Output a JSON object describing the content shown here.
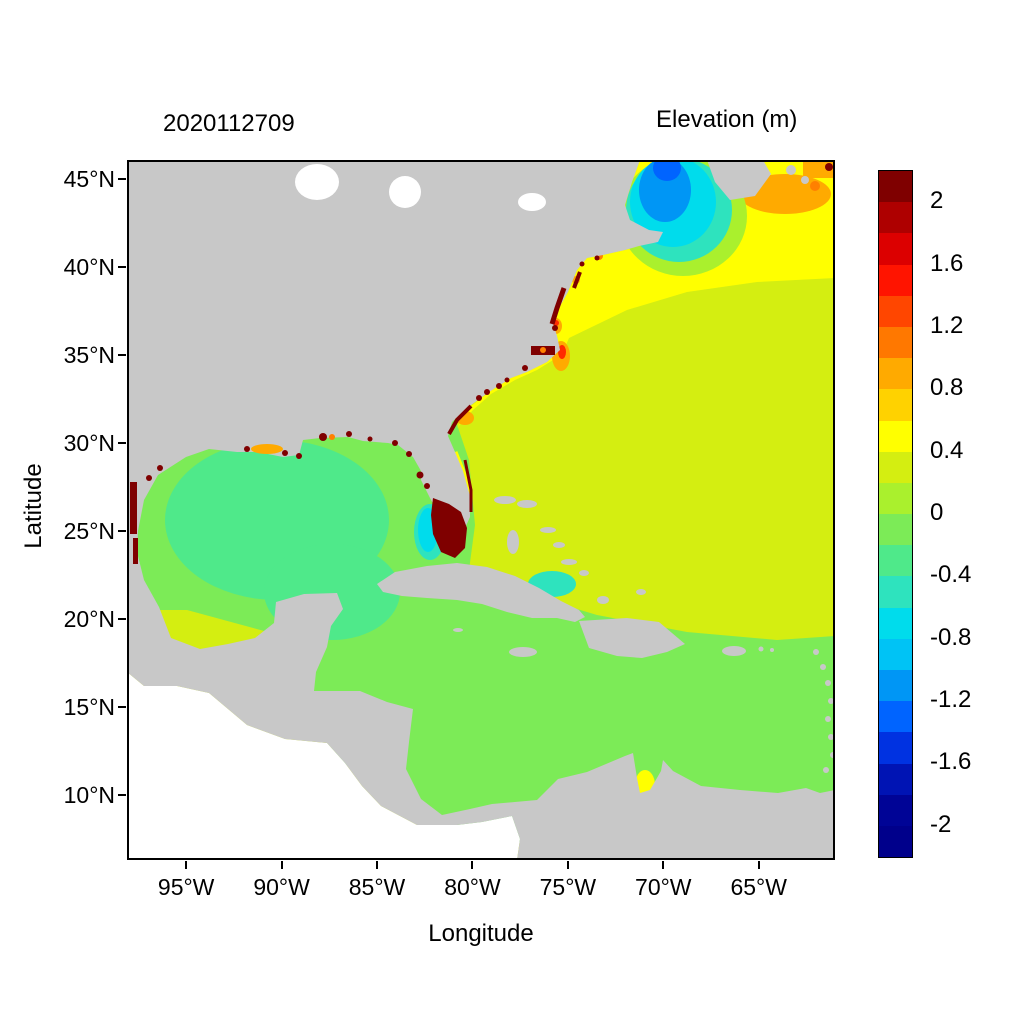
{
  "figure": {
    "timestamp_title": "2020112709",
    "colorbar_title": "Elevation (m)",
    "x_axis": {
      "label": "Longitude",
      "ticks": [
        {
          "label": "95°W",
          "lon": -95
        },
        {
          "label": "90°W",
          "lon": -90
        },
        {
          "label": "85°W",
          "lon": -85
        },
        {
          "label": "80°W",
          "lon": -80
        },
        {
          "label": "75°W",
          "lon": -75
        },
        {
          "label": "70°W",
          "lon": -70
        },
        {
          "label": "65°W",
          "lon": -65
        }
      ]
    },
    "y_axis": {
      "label": "Latitude",
      "ticks": [
        {
          "label": "45°N",
          "lat": 45
        },
        {
          "label": "40°N",
          "lat": 40
        },
        {
          "label": "35°N",
          "lat": 35
        },
        {
          "label": "30°N",
          "lat": 30
        },
        {
          "label": "25°N",
          "lat": 25
        },
        {
          "label": "20°N",
          "lat": 20
        },
        {
          "label": "15°N",
          "lat": 15
        },
        {
          "label": "10°N",
          "lat": 10
        }
      ]
    },
    "colorbar": {
      "tick_labels": [
        "2",
        "1.6",
        "1.2",
        "0.8",
        "0.4",
        "0",
        "-0.4",
        "-0.8",
        "-1.2",
        "-1.6",
        "-2"
      ],
      "band_colors": [
        "#7F0000",
        "#AE0000",
        "#DC0000",
        "#FF1400",
        "#FF4600",
        "#FF7800",
        "#FFAA00",
        "#FFD200",
        "#FFFF00",
        "#D4EE11",
        "#AAF02D",
        "#7CEB57",
        "#4FE98A",
        "#2EE3BE",
        "#00DCEC",
        "#00C3F5",
        "#0096F5",
        "#0064FF",
        "#0032E1",
        "#0014B4",
        "#000496",
        "#00008B"
      ],
      "value_min": -2.2,
      "value_max": 2.2
    }
  },
  "colors": {
    "background": "#FFFFFF",
    "outside_domain": "#FFFFFF",
    "land": "#C8C8C8",
    "lake": "#FFFFFF",
    "frame": "#000000",
    "atlantic": "#D4EE11",
    "coastal_yellow": "#FFFF00",
    "green": "#7CEB57",
    "spring_green": "#4FE98A",
    "turquoise": "#2EE3BE",
    "cyan": "#00DCEC",
    "blue": "#0096F5",
    "royal_blue": "#0064FF",
    "ring_green": "#AAF02D",
    "orange": "#FFAA00",
    "deep_orange": "#FF8000",
    "red": "#FF2B00",
    "dark_red": "#7F0000"
  },
  "chart_data": {
    "type": "heatmap",
    "title": "2020112709",
    "colorbar_label": "Elevation (m)",
    "xlabel": "Longitude",
    "ylabel": "Latitude",
    "x_ticks": [
      "95°W",
      "90°W",
      "85°W",
      "80°W",
      "75°W",
      "70°W",
      "65°W"
    ],
    "y_ticks": [
      "45°N",
      "40°N",
      "35°N",
      "30°N",
      "25°N",
      "20°N",
      "15°N",
      "10°N"
    ],
    "lon_range_deg": [
      -98.1,
      -61.0
    ],
    "lat_range_deg": [
      6.3,
      46.1
    ],
    "colorbar_ticks": [
      2,
      1.6,
      1.2,
      0.8,
      0.4,
      0,
      -0.4,
      -0.8,
      -1.2,
      -1.6,
      -2
    ],
    "colorbar_range": [
      -2.2,
      2.2
    ],
    "land_masked": true,
    "regions": [
      {
        "area": "Open Atlantic (east of 75W, 10-38N)",
        "elevation_m": 0.3
      },
      {
        "area": "US East Coast shelf band (Georgia to Nova Scotia)",
        "elevation_m": 0.5
      },
      {
        "area": "Cape Hatteras nearshore patch",
        "elevation_m": 0.9
      },
      {
        "area": "Chesapeake mouth patch",
        "elevation_m": 1.0
      },
      {
        "area": "Nova Scotia shelf patch",
        "elevation_m": 0.9
      },
      {
        "area": "Gulf of Maine",
        "elevation_m": -0.7
      },
      {
        "area": "Bay of Fundy core",
        "elevation_m": -1.1
      },
      {
        "area": "Bay of Fundy head spot",
        "elevation_m": -1.4
      },
      {
        "area": "Gulf of Mexico central",
        "elevation_m": -0.3
      },
      {
        "area": "Gulf of Mexico margins and Caribbean Sea",
        "elevation_m": -0.1
      },
      {
        "area": "Bahamas trough north of Cuba",
        "elevation_m": -0.5
      },
      {
        "area": "West Florida shelf cyan patch",
        "elevation_m": -0.7
      },
      {
        "area": "Southwest Florida coast (dark red surge)",
        "elevation_m": 2.2
      },
      {
        "area": "Coastal estuaries: Chesapeake, Pamlico, Georgia, Louisiana, Laguna Madre",
        "elevation_m": 2.0
      },
      {
        "area": "Gulf of Venezuela spot",
        "elevation_m": 0.5
      }
    ]
  }
}
